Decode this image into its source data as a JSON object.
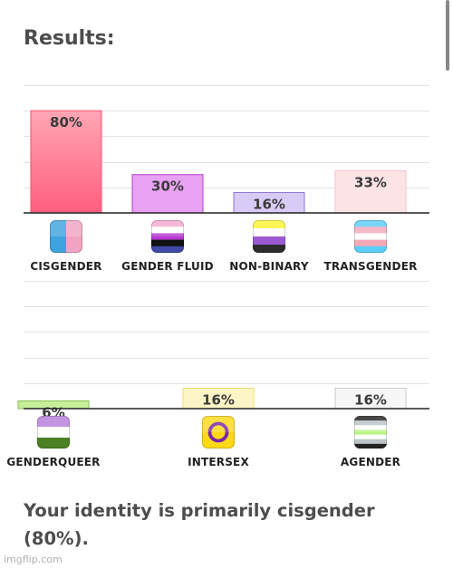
{
  "header": {
    "title": "Results:"
  },
  "result": {
    "text": "Your identity is primarily cisgender (80%)."
  },
  "watermark": {
    "text": "imgflip.com"
  },
  "chart_data": [
    {
      "type": "bar",
      "ylim": [
        0,
        100
      ],
      "grid": true,
      "categories": [
        "CISGENDER",
        "GENDER FLUID",
        "NON-BINARY",
        "TRANSGENDER"
      ],
      "values": [
        80,
        30,
        16,
        33
      ],
      "value_labels": [
        "80%",
        "30%",
        "16%",
        "33%"
      ],
      "bar_colors": [
        [
          "#ff5f7e",
          "#ffa6b4"
        ],
        [
          "#e7a2f2",
          "#e7a2f2"
        ],
        [
          "#d8ccf7",
          "#d8ccf7"
        ],
        [
          "#fce3e6",
          "#fce3e6"
        ]
      ],
      "border_colors": [
        "#ff4d70",
        "#b53ed0",
        "#8e73d6",
        "#f4c3cb"
      ],
      "icons": [
        "cisgender-flag-icon",
        "genderfluid-flag-icon",
        "nonbinary-flag-icon",
        "transgender-flag-icon"
      ]
    },
    {
      "type": "bar",
      "ylim": [
        0,
        100
      ],
      "grid": true,
      "categories": [
        "GENDERQUEER",
        "INTERSEX",
        "AGENDER"
      ],
      "values": [
        6,
        16,
        16
      ],
      "value_labels": [
        "6%",
        "16%",
        "16%"
      ],
      "bar_colors": [
        [
          "#c7ef9a",
          "#c7ef9a"
        ],
        [
          "#fdf5c5",
          "#fdf5c5"
        ],
        [
          "#f7f7f7",
          "#f7f7f7"
        ]
      ],
      "border_colors": [
        "#86c24e",
        "#f1dd6a",
        "#c9c9c9"
      ],
      "icons": [
        "genderqueer-flag-icon",
        "intersex-flag-icon",
        "agender-flag-icon"
      ]
    }
  ]
}
